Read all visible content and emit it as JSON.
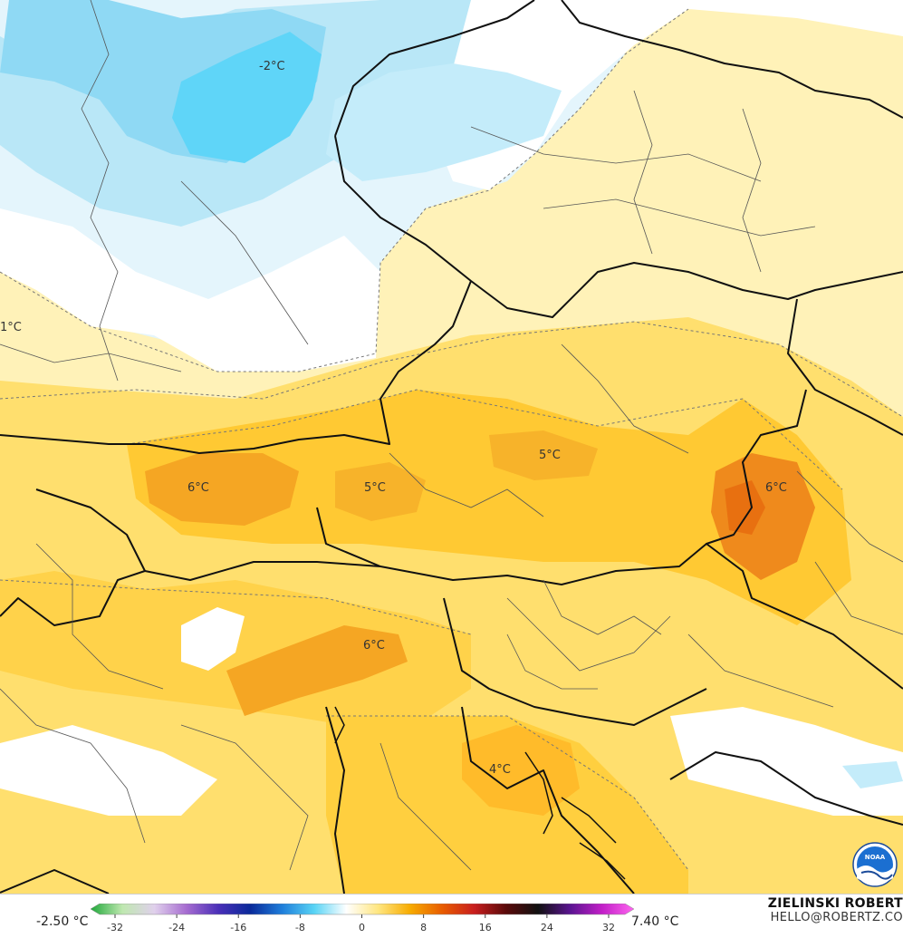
{
  "map": {
    "labels": [
      "-2°C",
      "1°C",
      "6°C",
      "5°C",
      "5°C",
      "6°C",
      "6°C",
      "4°C"
    ]
  },
  "legend": {
    "min_label": "-2.50 °C",
    "max_label": "7.40 °C",
    "ticks": [
      "-32",
      "-24",
      "-16",
      "-8",
      "0",
      "8",
      "16",
      "24",
      "32"
    ],
    "colors": [
      "#1fa83a",
      "#bfe8b0",
      "#e0d0ec",
      "#a66cd0",
      "#4a2fb8",
      "#0a2a9a",
      "#1f7fdb",
      "#59d4f5",
      "#ffffff",
      "#ffe680",
      "#f7ab00",
      "#e85c00",
      "#c81e1e",
      "#5a0a0a",
      "#111111",
      "#5a1490",
      "#c21fc8",
      "#ff66f0"
    ]
  },
  "author": {
    "name": "ZIELINSKI ROBERT",
    "email": "HELLO@ROBERTZ.CO"
  },
  "logo": {
    "text": "NOAA"
  }
}
